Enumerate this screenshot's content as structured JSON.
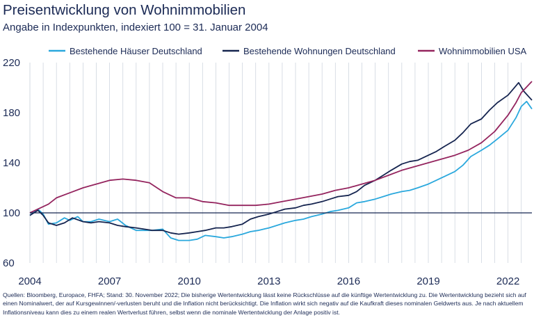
{
  "chart_data": {
    "type": "line",
    "title": "Preisentwicklung von Wohnimmobilien",
    "subtitle": "Angabe in Indexpunkten, indexiert 100 = 31. Januar 2004",
    "xlabel": "",
    "ylabel": "",
    "xlim": [
      2004.0,
      2022.9
    ],
    "ylim": [
      60,
      220
    ],
    "y_ticks": [
      220,
      180,
      140,
      100,
      60
    ],
    "x_ticks": [
      2004,
      2007,
      2010,
      2013,
      2016,
      2019,
      2022
    ],
    "grid": "vertical",
    "reference_line": 100,
    "legend_position": "top",
    "series": [
      {
        "name": "Bestehende Häuser Deutschland",
        "color": "#2aa8dd",
        "x": [
          2004.0,
          2004.3,
          2004.5,
          2004.7,
          2005.0,
          2005.3,
          2005.5,
          2005.8,
          2006.0,
          2006.3,
          2006.6,
          2007.0,
          2007.3,
          2007.6,
          2008.0,
          2008.3,
          2008.6,
          2009.0,
          2009.3,
          2009.6,
          2010.0,
          2010.3,
          2010.6,
          2011.0,
          2011.3,
          2011.6,
          2012.0,
          2012.3,
          2012.6,
          2013.0,
          2013.3,
          2013.6,
          2014.0,
          2014.3,
          2014.6,
          2015.0,
          2015.3,
          2015.6,
          2016.0,
          2016.3,
          2016.6,
          2017.0,
          2017.3,
          2017.6,
          2018.0,
          2018.3,
          2018.6,
          2019.0,
          2019.3,
          2019.6,
          2020.0,
          2020.3,
          2020.6,
          2021.0,
          2021.3,
          2021.6,
          2022.0,
          2022.3,
          2022.5,
          2022.7,
          2022.9
        ],
        "values": [
          98,
          103,
          99,
          91,
          92,
          96,
          94,
          97,
          93,
          93,
          95,
          93,
          95,
          90,
          86,
          86,
          86,
          87,
          80,
          78,
          78,
          79,
          82,
          81,
          80,
          81,
          83,
          85,
          86,
          88,
          90,
          92,
          94,
          95,
          97,
          99,
          101,
          102,
          104,
          108,
          109,
          111,
          113,
          115,
          117,
          118,
          120,
          123,
          126,
          129,
          133,
          138,
          145,
          150,
          154,
          159,
          166,
          176,
          185,
          189,
          183
        ]
      },
      {
        "name": "Bestehende Wohnungen Deutschland",
        "color": "#15244f",
        "x": [
          2004.0,
          2004.3,
          2004.5,
          2004.7,
          2005.0,
          2005.3,
          2005.6,
          2006.0,
          2006.3,
          2006.6,
          2007.0,
          2007.3,
          2007.6,
          2008.0,
          2008.3,
          2008.6,
          2009.0,
          2009.3,
          2009.6,
          2010.0,
          2010.3,
          2010.6,
          2011.0,
          2011.3,
          2011.6,
          2012.0,
          2012.3,
          2012.6,
          2013.0,
          2013.3,
          2013.6,
          2014.0,
          2014.3,
          2014.6,
          2015.0,
          2015.3,
          2015.6,
          2016.0,
          2016.3,
          2016.6,
          2017.0,
          2017.3,
          2017.6,
          2018.0,
          2018.3,
          2018.6,
          2019.0,
          2019.3,
          2019.6,
          2020.0,
          2020.3,
          2020.6,
          2021.0,
          2021.3,
          2021.6,
          2022.0,
          2022.2,
          2022.4,
          2022.6,
          2022.9
        ],
        "values": [
          98,
          102,
          98,
          92,
          90,
          92,
          96,
          93,
          92,
          93,
          92,
          90,
          89,
          88,
          87,
          86,
          86,
          84,
          83,
          84,
          85,
          86,
          88,
          88,
          89,
          91,
          95,
          97,
          99,
          101,
          103,
          104,
          106,
          107,
          109,
          111,
          113,
          114,
          117,
          122,
          126,
          130,
          134,
          139,
          141,
          142,
          146,
          149,
          153,
          158,
          164,
          171,
          175,
          182,
          188,
          194,
          199,
          204,
          197,
          190
        ]
      },
      {
        "name": "Wohnimmobilien USA",
        "color": "#94245e",
        "x": [
          2004.0,
          2004.3,
          2004.7,
          2005.0,
          2005.5,
          2006.0,
          2006.5,
          2007.0,
          2007.5,
          2008.0,
          2008.5,
          2009.0,
          2009.5,
          2010.0,
          2010.5,
          2011.0,
          2011.5,
          2012.0,
          2012.5,
          2013.0,
          2013.5,
          2014.0,
          2014.5,
          2015.0,
          2015.5,
          2016.0,
          2016.5,
          2017.0,
          2017.5,
          2018.0,
          2018.5,
          2019.0,
          2019.5,
          2020.0,
          2020.5,
          2021.0,
          2021.5,
          2022.0,
          2022.3,
          2022.5,
          2022.9
        ],
        "values": [
          100,
          103,
          107,
          112,
          116,
          120,
          123,
          126,
          127,
          126,
          124,
          117,
          112,
          112,
          109,
          108,
          106,
          106,
          106,
          107,
          109,
          111,
          113,
          115,
          118,
          120,
          123,
          126,
          130,
          134,
          137,
          140,
          143,
          146,
          150,
          156,
          165,
          178,
          188,
          196,
          205
        ]
      }
    ]
  }
}
